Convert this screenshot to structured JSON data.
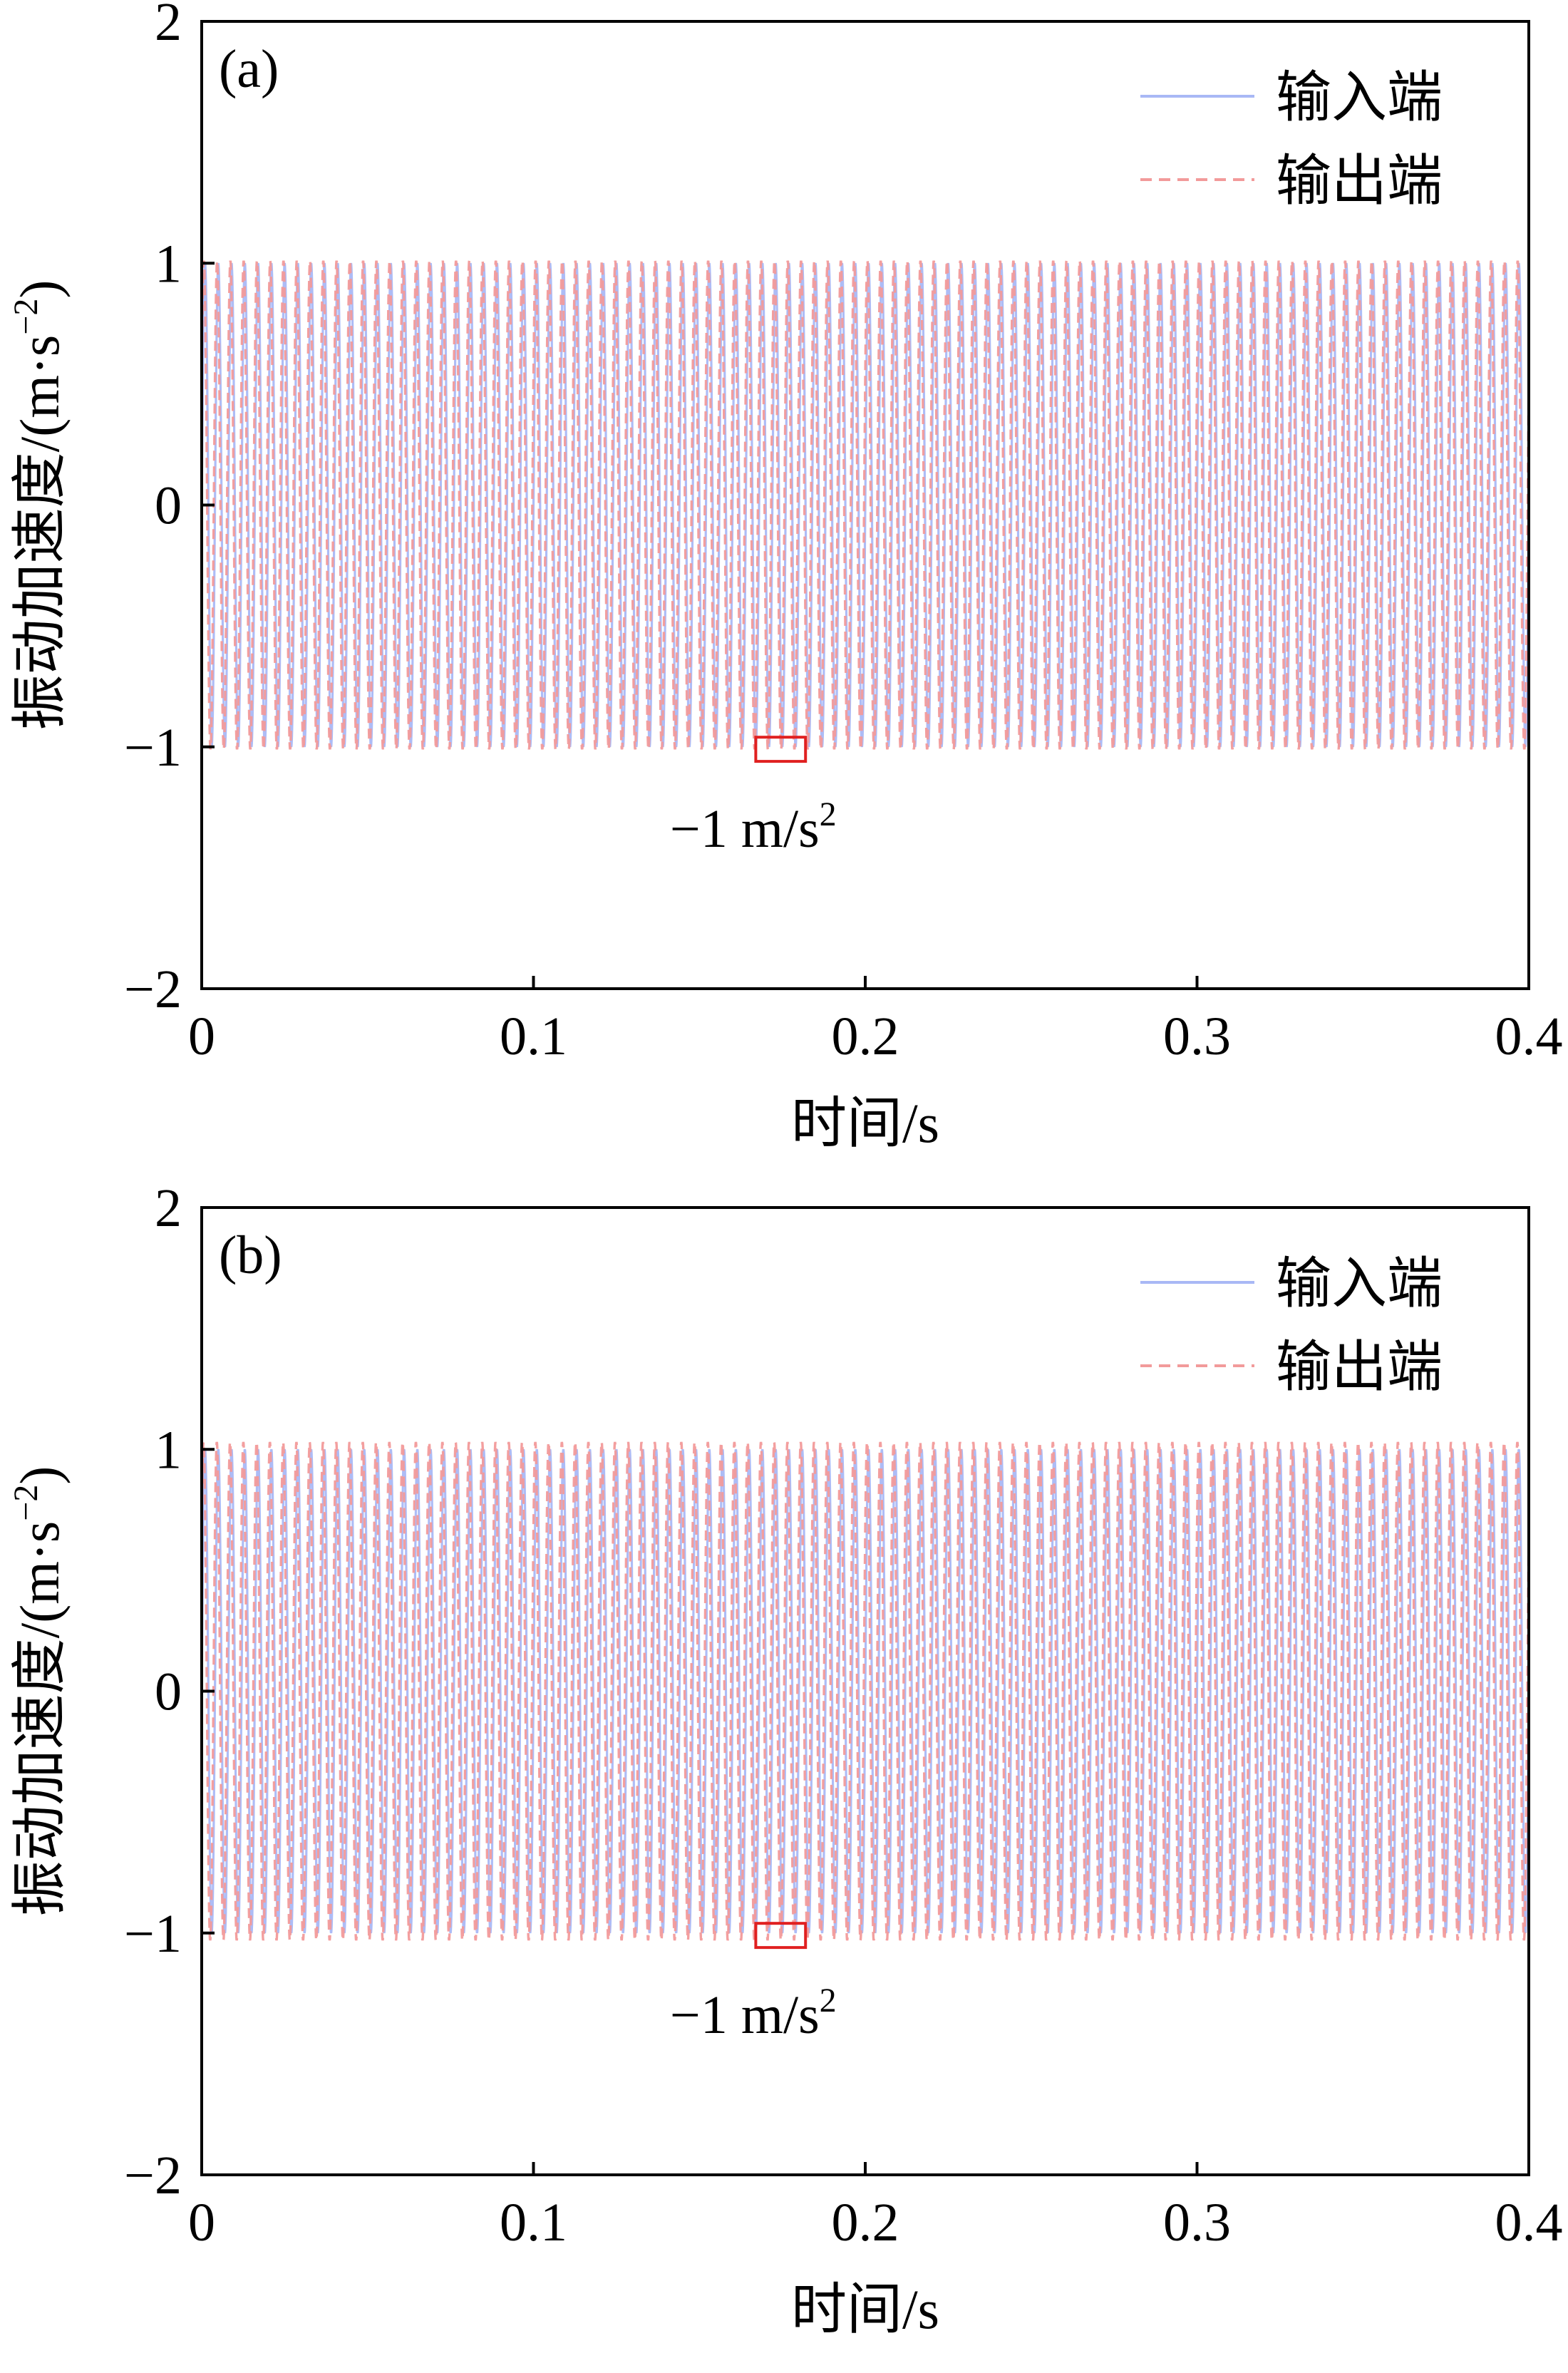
{
  "chart_data": [
    {
      "type": "line",
      "panel_label": "(a)",
      "xlabel": "时间/s",
      "ylabel": "振动加速度/(m·s",
      "ylabel_unit_exp": "−2",
      "ylabel_close": ")",
      "xlim": [
        0,
        0.4
      ],
      "ylim": [
        -2,
        2
      ],
      "x_ticks": [
        0,
        0.1,
        0.2,
        0.3,
        0.4
      ],
      "x_tick_labels": [
        "0",
        "0.1",
        "0.2",
        "0.3",
        "0.4"
      ],
      "y_ticks": [
        -2,
        -1,
        0,
        1,
        2
      ],
      "y_tick_labels": [
        "−2",
        "−1",
        "0",
        "1",
        "2"
      ],
      "legend_position": "top-right",
      "series": [
        {
          "name": "输入端",
          "color": "#A9B8F5",
          "style": "solid",
          "signal": "sine",
          "amplitude": 1.0,
          "cycles": 100,
          "phase": 0.0,
          "x_range": [
            0,
            0.4
          ]
        },
        {
          "name": "输出端",
          "color": "#F29A9A",
          "style": "dashed",
          "signal": "sine",
          "amplitude": 1.01,
          "cycles": 100,
          "phase": 0.55,
          "x_range": [
            0,
            0.4
          ]
        }
      ],
      "annotation": {
        "text": "−1 m/s",
        "exp": "2",
        "box_x": [
          0.167,
          0.182
        ],
        "box_y": [
          -1.06,
          -0.96
        ],
        "color": "#E02020"
      }
    },
    {
      "type": "line",
      "panel_label": "(b)",
      "xlabel": "时间/s",
      "ylabel": "振动加速度/(m·s",
      "ylabel_unit_exp": "−2",
      "ylabel_close": ")",
      "xlim": [
        0,
        0.4
      ],
      "ylim": [
        -2,
        2
      ],
      "x_ticks": [
        0,
        0.1,
        0.2,
        0.3,
        0.4
      ],
      "x_tick_labels": [
        "0",
        "0.1",
        "0.2",
        "0.3",
        "0.4"
      ],
      "y_ticks": [
        -2,
        -1,
        0,
        1,
        2
      ],
      "y_tick_labels": [
        "−2",
        "−1",
        "0",
        "1",
        "2"
      ],
      "legend_position": "top-right",
      "series": [
        {
          "name": "输入端",
          "color": "#A9B8F5",
          "style": "solid",
          "signal": "sine",
          "amplitude": 1.0,
          "cycles": 100,
          "phase": 0.0,
          "x_range": [
            0,
            0.4
          ]
        },
        {
          "name": "输出端",
          "color": "#F29A9A",
          "style": "dashed",
          "signal": "sine",
          "amplitude": 1.03,
          "cycles": 100,
          "phase": 0.7,
          "x_range": [
            0,
            0.4
          ]
        }
      ],
      "annotation": {
        "text": "−1 m/s",
        "exp": "2",
        "box_x": [
          0.167,
          0.182
        ],
        "box_y": [
          -1.06,
          -0.96
        ],
        "color": "#E02020"
      }
    }
  ]
}
